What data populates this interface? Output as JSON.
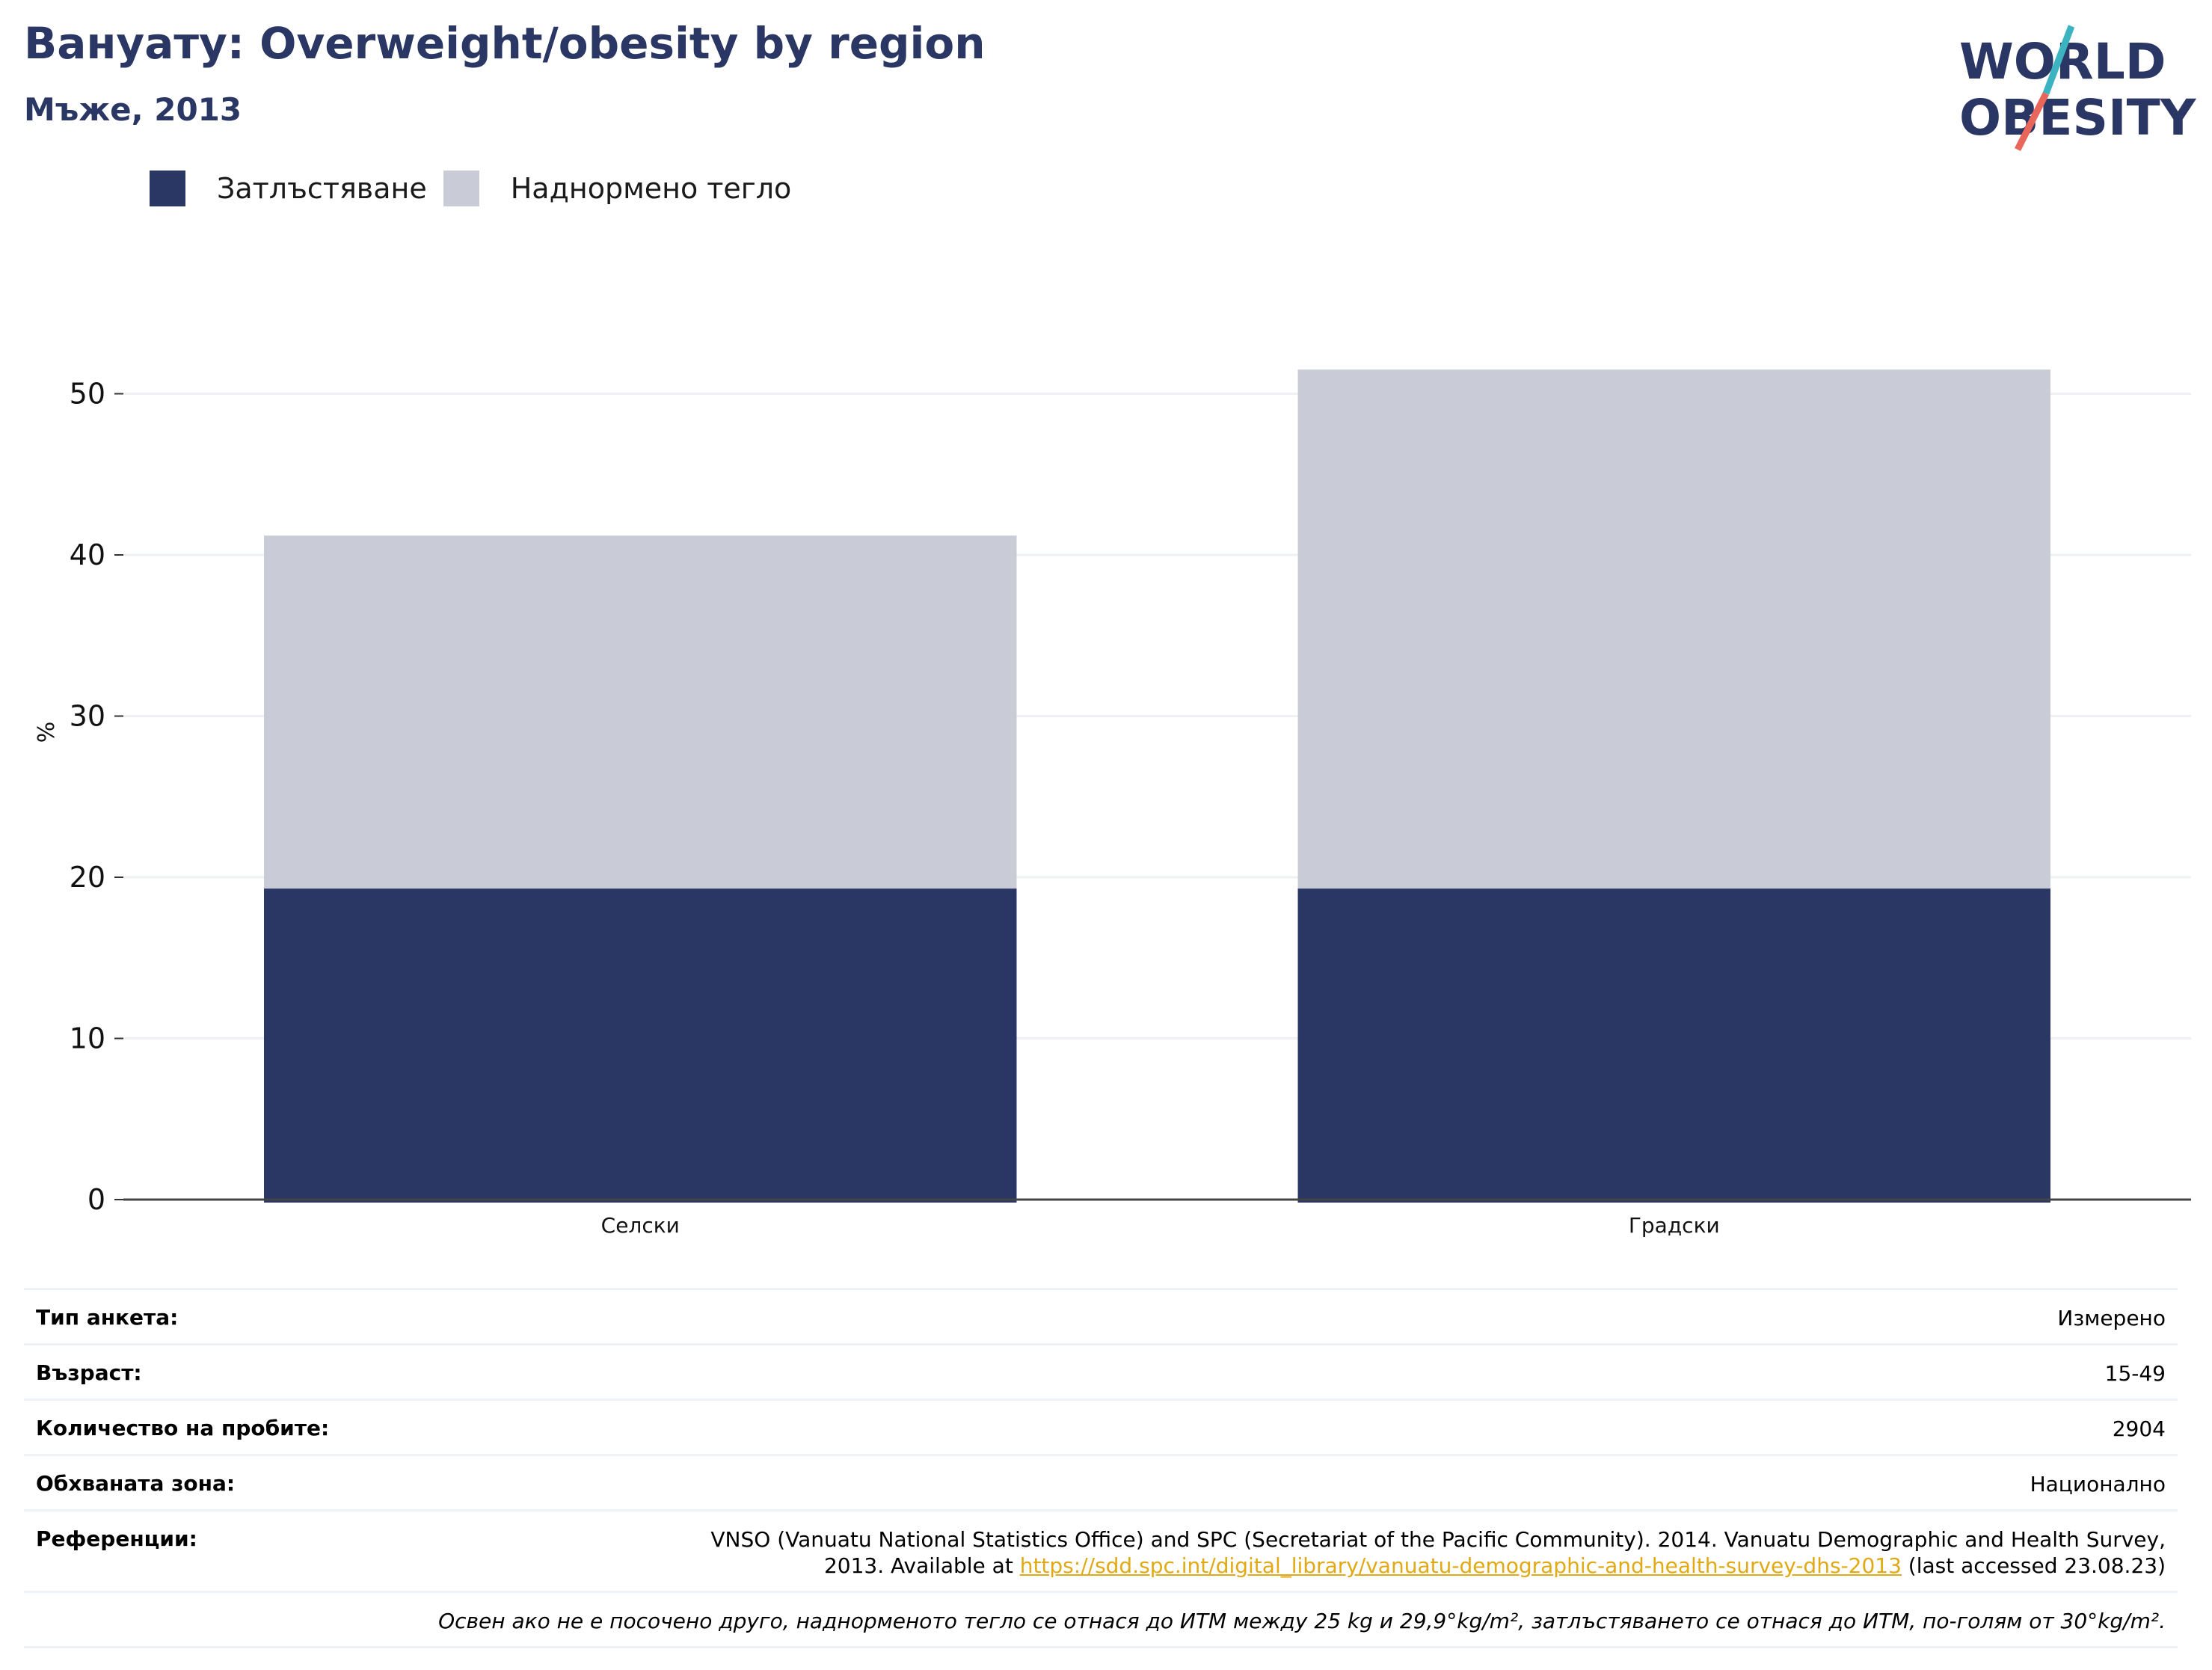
{
  "header": {
    "title": "Вануату: Overweight/obesity by region",
    "subtitle": "Мъже, 2013",
    "logo_text_line1": "WORLD",
    "logo_text_line2": "OBESITY"
  },
  "colors": {
    "obesity": "#2a3663",
    "overweight": "#c9cbd6",
    "title": "#2a3663",
    "link": "#e1a913",
    "grid": "#eef0f4",
    "logo_slash_top": "#3bb3c0",
    "logo_slash_bottom": "#e8675a"
  },
  "legend": {
    "obesity_label": "Затлъстяване",
    "overweight_label": "Наднормено тегло"
  },
  "chart_data": {
    "type": "bar",
    "stacked": true,
    "categories": [
      "Селски",
      "Градски"
    ],
    "series": [
      {
        "name": "Затлъстяване",
        "values": [
          19.3,
          19.3
        ]
      },
      {
        "name": "Наднормено тегло",
        "values": [
          21.9,
          32.2
        ]
      }
    ],
    "totals": [
      41.2,
      51.5
    ],
    "title": "Вануату: Overweight/obesity by region",
    "subtitle": "Мъже, 2013",
    "xlabel": "",
    "ylabel": "%",
    "ylim": [
      0,
      54
    ],
    "yticks": [
      0,
      10,
      20,
      30,
      40,
      50
    ],
    "grid": true,
    "legend_position": "top-left"
  },
  "meta": {
    "survey_type_label": "Тип анкета:",
    "survey_type_value": "Измерено",
    "age_label": "Възраст:",
    "age_value": "15-49",
    "sample_label": "Количество на пробите:",
    "sample_value": "2904",
    "area_label": "Обхваната зона:",
    "area_value": "Национално",
    "references_label": "Референции:",
    "references_line1": "VNSO (Vanuatu National Statistics Office) and SPC (Secretariat of the Pacific Community). 2014. Vanuatu Demographic and Health Survey,",
    "references_line2_prefix": "2013. Available at ",
    "references_link": "https://sdd.spc.int/digital_library/vanuatu-demographic-and-health-survey-dhs-2013",
    "references_line2_suffix": " (last accessed 23.08.23)",
    "note": "Освен ако не е посочено друго, наднорменото тегло се отнася до ИТМ между 25 kg и 29,9°kg/m², затлъстяването се отнася до ИТМ, по-голям от 30°kg/m²."
  }
}
